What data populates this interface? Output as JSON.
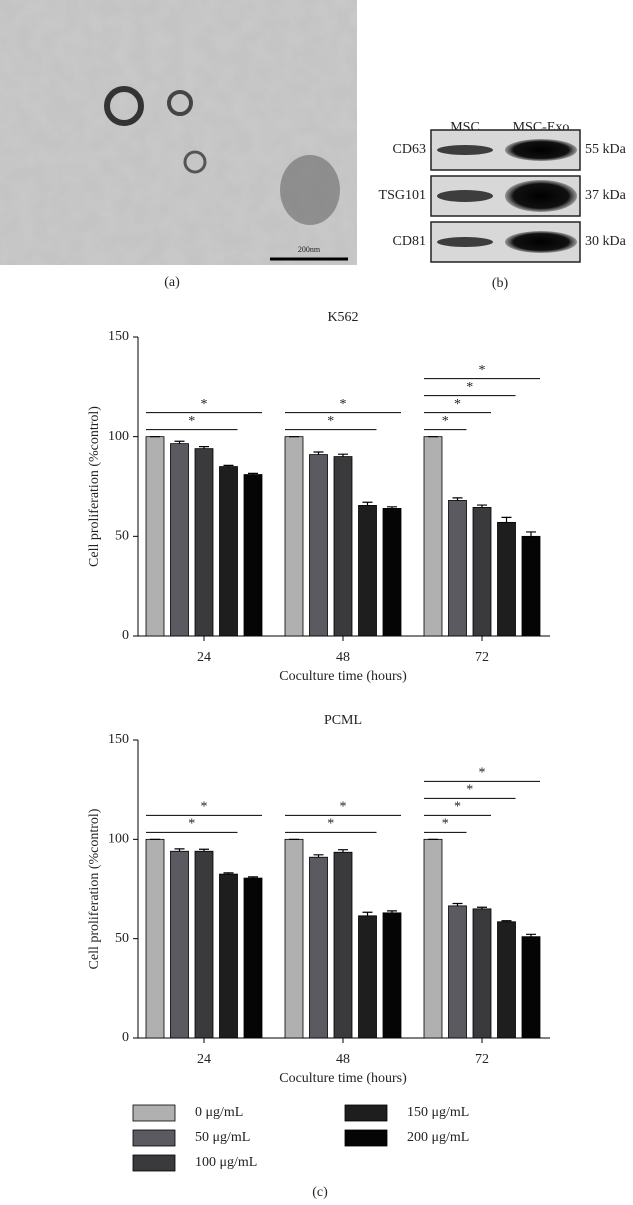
{
  "panels": {
    "a": {
      "scale_bar": "200nm",
      "caption": "(a)"
    },
    "b": {
      "columns": [
        "MSC",
        "MSC-Exo"
      ],
      "rows": [
        {
          "protein": "CD63",
          "size": "55 kDa"
        },
        {
          "protein": "TSG101",
          "size": "37 kDa"
        },
        {
          "protein": "CD81",
          "size": "30 kDa"
        }
      ],
      "caption": "(b)"
    },
    "c": {
      "caption": "(c)"
    }
  },
  "chart_data": [
    {
      "type": "bar",
      "title": "K562",
      "x_label": "Coculture time (hours)",
      "y_label": "Cell proliferation (%control)",
      "categories": [
        "24",
        "48",
        "72"
      ],
      "ylim": [
        0,
        150
      ],
      "yticks": [
        0,
        50,
        100,
        150
      ],
      "series": [
        {
          "name": "0 μg/mL",
          "color": "#b0b0b0",
          "values": [
            100,
            100,
            100
          ],
          "errors": [
            0,
            0,
            0
          ]
        },
        {
          "name": "50 μg/mL",
          "color": "#5a5a60",
          "values": [
            96.5,
            91,
            68
          ],
          "errors": [
            1.2,
            1.3,
            1.3
          ]
        },
        {
          "name": "100 μg/mL",
          "color": "#3a3a3c",
          "values": [
            94,
            90,
            64.5
          ],
          "errors": [
            1,
            1.2,
            1.2
          ]
        },
        {
          "name": "150 μg/mL",
          "color": "#1e1e1e",
          "values": [
            85,
            65.5,
            57
          ],
          "errors": [
            0.6,
            1.6,
            2.5
          ]
        },
        {
          "name": "200 μg/mL",
          "color": "#050505",
          "values": [
            81,
            64,
            50
          ],
          "errors": [
            0.6,
            0.8,
            2.2
          ]
        }
      ],
      "significance": [
        {
          "category": 0,
          "between": [
            0,
            3
          ],
          "label": "*"
        },
        {
          "category": 0,
          "between": [
            0,
            4
          ],
          "label": "*"
        },
        {
          "category": 1,
          "between": [
            0,
            3
          ],
          "label": "*"
        },
        {
          "category": 1,
          "between": [
            0,
            4
          ],
          "label": "*"
        },
        {
          "category": 2,
          "between": [
            0,
            1
          ],
          "label": "*"
        },
        {
          "category": 2,
          "between": [
            0,
            2
          ],
          "label": "*"
        },
        {
          "category": 2,
          "between": [
            0,
            3
          ],
          "label": "*"
        },
        {
          "category": 2,
          "between": [
            0,
            4
          ],
          "label": "*"
        }
      ]
    },
    {
      "type": "bar",
      "title": "PCML",
      "x_label": "Coculture time (hours)",
      "y_label": "Cell proliferation (%control)",
      "categories": [
        "24",
        "48",
        "72"
      ],
      "ylim": [
        0,
        150
      ],
      "yticks": [
        0,
        50,
        100,
        150
      ],
      "series": [
        {
          "color": "#b0b0b0",
          "values": [
            100,
            100,
            100
          ],
          "errors": [
            0,
            0,
            0
          ]
        },
        {
          "color": "#5a5a60",
          "values": [
            94,
            91,
            66.5
          ],
          "errors": [
            1.2,
            1.2,
            1.2
          ]
        },
        {
          "color": "#3a3a3c",
          "values": [
            94,
            93.5,
            65
          ],
          "errors": [
            1,
            1.3,
            0.8
          ]
        },
        {
          "color": "#1e1e1e",
          "values": [
            82.5,
            61.5,
            58.5
          ],
          "errors": [
            0.6,
            1.8,
            0.5
          ]
        },
        {
          "color": "#050505",
          "values": [
            80.5,
            63,
            51
          ],
          "errors": [
            0.6,
            1,
            1.2
          ]
        }
      ],
      "significance": [
        {
          "category": 0,
          "between": [
            0,
            3
          ],
          "label": "*"
        },
        {
          "category": 0,
          "between": [
            0,
            4
          ],
          "label": "*"
        },
        {
          "category": 1,
          "between": [
            0,
            3
          ],
          "label": "*"
        },
        {
          "category": 1,
          "between": [
            0,
            4
          ],
          "label": "*"
        },
        {
          "category": 2,
          "between": [
            0,
            1
          ],
          "label": "*"
        },
        {
          "category": 2,
          "between": [
            0,
            2
          ],
          "label": "*"
        },
        {
          "category": 2,
          "between": [
            0,
            3
          ],
          "label": "*"
        },
        {
          "category": 2,
          "between": [
            0,
            4
          ],
          "label": "*"
        }
      ]
    }
  ]
}
